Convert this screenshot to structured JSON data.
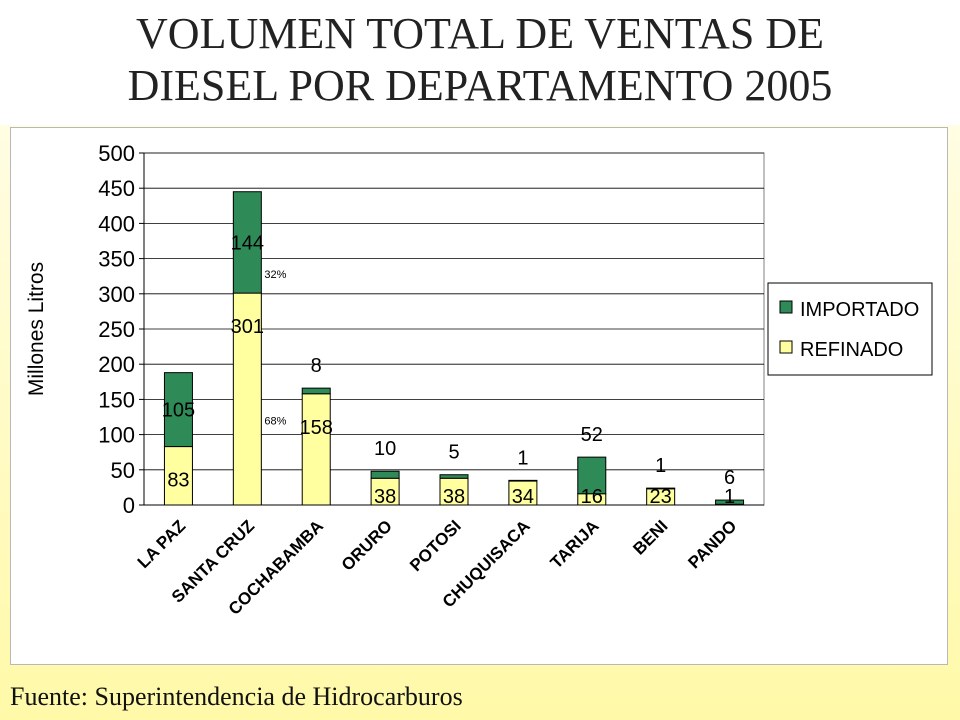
{
  "page": {
    "title_line1": "VOLUMEN TOTAL DE VENTAS DE",
    "title_line2": "DIESEL POR DEPARTAMENTO 2005",
    "source": "Fuente: Superintendencia de Hidrocarburos"
  },
  "colors": {
    "importado": "#2e8b57",
    "refinado": "#ffffa0",
    "outline": "#000000"
  },
  "chart_data": {
    "type": "bar",
    "stacked": true,
    "ylabel": "Millones Litros",
    "ylim": [
      0,
      500
    ],
    "yticks": [
      0,
      50,
      100,
      150,
      200,
      250,
      300,
      350,
      400,
      450,
      500
    ],
    "grid": true,
    "legend": "right",
    "categories": [
      "LA PAZ",
      "SANTA CRUZ",
      "COCHABAMBA",
      "ORURO",
      "POTOSI",
      "CHUQUISACA",
      "TARIJA",
      "BENI",
      "PANDO"
    ],
    "series": [
      {
        "name": "REFINADO",
        "values": [
          83,
          301,
          158,
          38,
          38,
          34,
          16,
          23,
          1
        ]
      },
      {
        "name": "IMPORTADO",
        "values": [
          105,
          144,
          8,
          10,
          5,
          1,
          52,
          1,
          6
        ]
      }
    ],
    "annotations": [
      {
        "category": "SANTA CRUZ",
        "series": "IMPORTADO",
        "text": "32%"
      },
      {
        "category": "SANTA CRUZ",
        "series": "REFINADO",
        "text": "68%"
      }
    ]
  }
}
